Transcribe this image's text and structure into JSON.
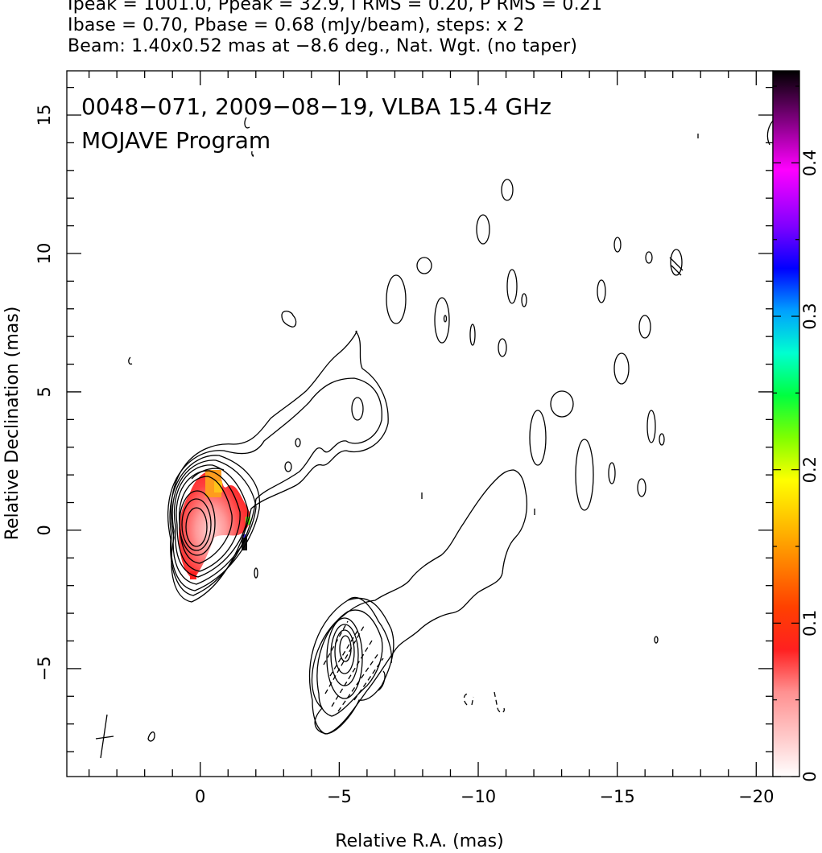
{
  "header": {
    "line1": "Ipeak = 1001.0, Ppeak = 32.9, I RMS = 0.20, P RMS = 0.21",
    "line2": "Ibase = 0.70, Pbase = 0.68 (mJy/beam), steps: x 2",
    "line3": "Beam: 1.40x0.52 mas at −8.6 deg., Nat. Wgt. (no taper)"
  },
  "chart_data": {
    "type": "heatmap",
    "title": "0048−071, 2009−08−19, VLBA 15.4 GHz",
    "subtitle": "MOJAVE Program",
    "xlabel": "Relative R.A. (mas)",
    "ylabel": "Relative Declination (mas)",
    "xlim": [
      4.8,
      -20.6
    ],
    "ylim": [
      -8.9,
      16.6
    ],
    "x_ticks": [
      0,
      -5,
      -10,
      -15,
      -20
    ],
    "x_tick_labels": [
      "0",
      "−5",
      "−10",
      "−15",
      "−20"
    ],
    "y_ticks": [
      -5,
      0,
      5,
      10,
      15
    ],
    "y_tick_labels": [
      "−5",
      "0",
      "5",
      "10",
      "15"
    ],
    "colorbar": {
      "range": [
        0,
        0.46
      ],
      "ticks": [
        0,
        0.1,
        0.2,
        0.3,
        0.4
      ],
      "tick_labels": [
        "0",
        "0.1",
        "0.2",
        "0.3",
        "0.4"
      ]
    },
    "beam": {
      "major_mas": 1.4,
      "minor_mas": 0.52,
      "pa_deg": -8.6,
      "center": [
        3.4,
        -7.7
      ]
    },
    "core": {
      "x": 0.0,
      "y": 0.0
    },
    "secondary_component": {
      "x": -5.1,
      "y": -4.4
    },
    "polarization_region": {
      "x_range": [
        -1.8,
        0.3
      ],
      "y_range": [
        -1.7,
        2.1
      ]
    },
    "grid": false
  },
  "colors": {
    "contour": "#000000",
    "colorbar_stops": [
      "#ffe6e6",
      "#ff8080",
      "#ff0000",
      "#ff8000",
      "#ffd000",
      "#ffff00",
      "#80ff00",
      "#00ff40",
      "#00ffd0",
      "#00a0ff",
      "#0000ff",
      "#8000ff",
      "#ff00ff",
      "#c000c0",
      "#400040",
      "#000000"
    ]
  }
}
